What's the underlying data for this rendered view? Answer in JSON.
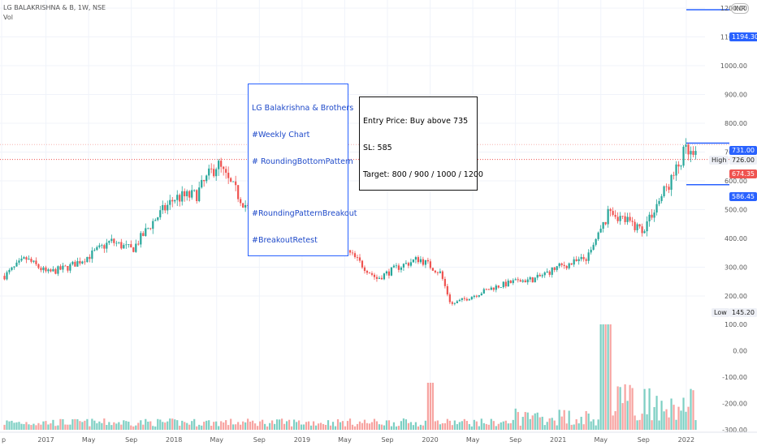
{
  "header": {
    "symbol_line": "LG BALAKRISHNA & B, 1W, NSE",
    "vol_label": "Vol"
  },
  "currency_badge": "INR",
  "notes": {
    "blue": [
      "LG Balakrishna & Brothers",
      "#Weekly Chart",
      "# RoundingBottomPattern",
      "",
      "#RoundingPatternBreakout",
      "#BreakoutRetest"
    ],
    "trade": [
      "Entry Price: Buy above 735",
      "SL: 585",
      "Target: 800 / 900 / 1000 / 1200"
    ]
  },
  "price_tags": {
    "target": "1194.30",
    "entry": "731.00",
    "high_label": "High",
    "high": "726.00",
    "last": "674.35",
    "sl": "586.45",
    "low_label": "Low",
    "low": "145.20"
  },
  "colors": {
    "up": "#26a69a",
    "down": "#ef5350",
    "level": "#2962ff",
    "vol_up": "#7dcfc3",
    "vol_down": "#f7a3a0",
    "grid": "#f0f3fa"
  },
  "chart_data": {
    "type": "candlestick",
    "interval": "1W",
    "price_axis": {
      "ticks": [
        "1200.00",
        "1100.00",
        "1000.00",
        "900.00",
        "800.00",
        "700.00",
        "600.00",
        "500.00",
        "400.00",
        "300.00",
        "200.00"
      ],
      "range": [
        120,
        1230
      ]
    },
    "volume_axis": {
      "ticks": [
        "100.00",
        "0.00",
        "-100.00",
        "-200.00",
        "-300.00"
      ]
    },
    "time_axis": {
      "ticks": [
        "p",
        "2017",
        "May",
        "Sep",
        "2018",
        "May",
        "Sep",
        "2019",
        "May",
        "Sep",
        "2020",
        "May",
        "Sep",
        "2021",
        "May",
        "Sep",
        "2022"
      ]
    },
    "levels": [
      {
        "label": "Target",
        "value": 1194.3
      },
      {
        "label": "Entry",
        "value": 731.0
      },
      {
        "label": "High",
        "value": 726.0
      },
      {
        "label": "Last",
        "value": 674.35
      },
      {
        "label": "SL",
        "value": 586.45
      },
      {
        "label": "Low",
        "value": 145.2
      }
    ],
    "price_path": [
      [
        "2016-09",
        270
      ],
      [
        "2016-11",
        330
      ],
      [
        "2017-01",
        280
      ],
      [
        "2017-03",
        300
      ],
      [
        "2017-05",
        340
      ],
      [
        "2017-07",
        390
      ],
      [
        "2017-09",
        360
      ],
      [
        "2017-11",
        460
      ],
      [
        "2018-01",
        540
      ],
      [
        "2018-03",
        550
      ],
      [
        "2018-05",
        660
      ],
      [
        "2018-06",
        600
      ],
      [
        "2018-08",
        500
      ],
      [
        "2018-10",
        430
      ],
      [
        "2018-12",
        390
      ],
      [
        "2019-02",
        400
      ],
      [
        "2019-04",
        390
      ],
      [
        "2019-06",
        330
      ],
      [
        "2019-08",
        260
      ],
      [
        "2019-10",
        300
      ],
      [
        "2019-12",
        330
      ],
      [
        "2020-02",
        280
      ],
      [
        "2020-03",
        170
      ],
      [
        "2020-05",
        200
      ],
      [
        "2020-07",
        230
      ],
      [
        "2020-09",
        250
      ],
      [
        "2020-11",
        260
      ],
      [
        "2021-01",
        300
      ],
      [
        "2021-03",
        320
      ],
      [
        "2021-04",
        340
      ],
      [
        "2021-06",
        500
      ],
      [
        "2021-07",
        470
      ],
      [
        "2021-09",
        430
      ],
      [
        "2021-11",
        560
      ],
      [
        "2021-12",
        620
      ],
      [
        "2022-01",
        700
      ],
      [
        "2022-02",
        674.35
      ]
    ]
  }
}
